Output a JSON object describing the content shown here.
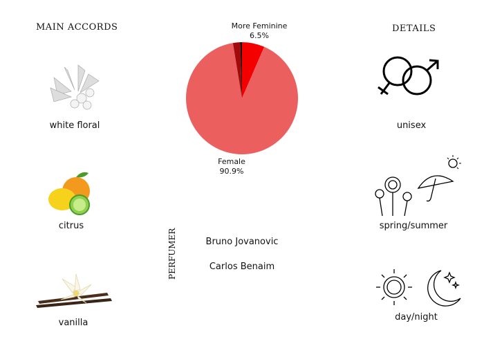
{
  "main_accords": {
    "title": "MAIN ACCORDS",
    "items": [
      {
        "label": "white floral",
        "icon": "white-flower-icon"
      },
      {
        "label": "citrus",
        "icon": "citrus-fruit-icon"
      },
      {
        "label": "vanilla",
        "icon": "vanilla-flower-icon"
      }
    ]
  },
  "details": {
    "title": "DETAILS",
    "items": [
      {
        "label": "unisex",
        "icon": "gender-symbols-icon"
      },
      {
        "label": "spring/summer",
        "icon": "flowers-umbrella-sun-icon"
      },
      {
        "label": "day/night",
        "icon": "sun-moon-icon"
      }
    ]
  },
  "perfumer": {
    "title": "PERFUMER",
    "names": [
      "Bruno Jovanovic",
      "Carlos Benaim"
    ]
  },
  "chart_data": {
    "type": "pie",
    "direction": "clockwise from top",
    "slices": [
      {
        "name": "More Feminine",
        "value": 6.5,
        "label": "6.5%",
        "color": "#f50000"
      },
      {
        "name": "Female",
        "value": 90.9,
        "label": "90.9%",
        "color": "#ec5f5f"
      },
      {
        "value": 2.1,
        "color": "#a30b0b"
      },
      {
        "value": 0.5,
        "color": "#1a0000"
      }
    ]
  }
}
